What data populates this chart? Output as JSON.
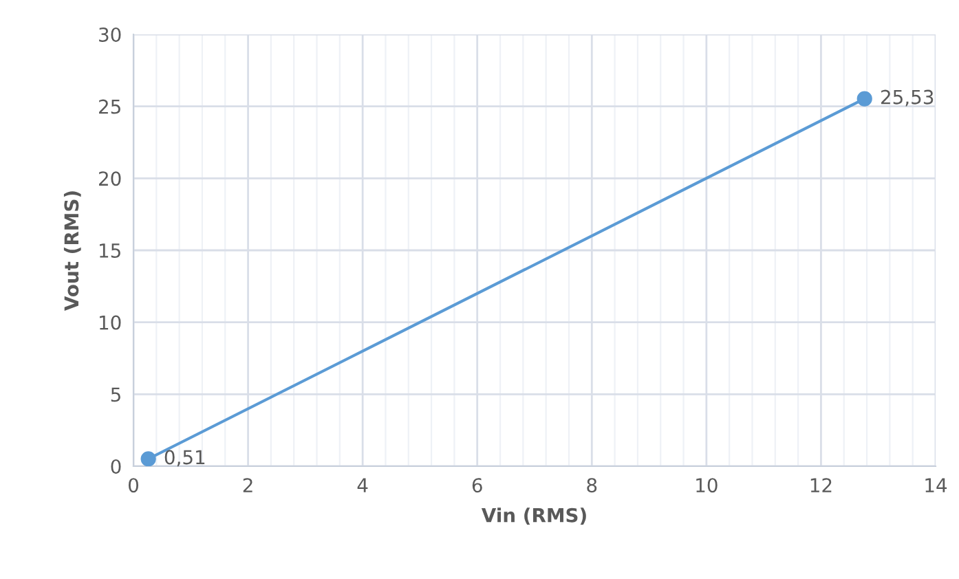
{
  "chart_data": {
    "type": "line",
    "xlabel": "Vin (RMS)",
    "ylabel": "Vout (RMS)",
    "x": [
      0.26,
      12.76
    ],
    "series": [
      {
        "color": "#5b9bd5",
        "values": [
          0.51,
          25.53
        ],
        "value_labels": [
          "0,51",
          "25,53"
        ]
      }
    ],
    "xlim": [
      0,
      14
    ],
    "xticks": [
      0,
      2,
      4,
      6,
      8,
      10,
      12,
      14
    ],
    "ylim": [
      0,
      30
    ],
    "yticks": [
      0,
      5,
      10,
      15,
      20,
      25,
      30
    ],
    "grid": true,
    "marker": "circle",
    "line_style": "solid",
    "legend": false
  }
}
